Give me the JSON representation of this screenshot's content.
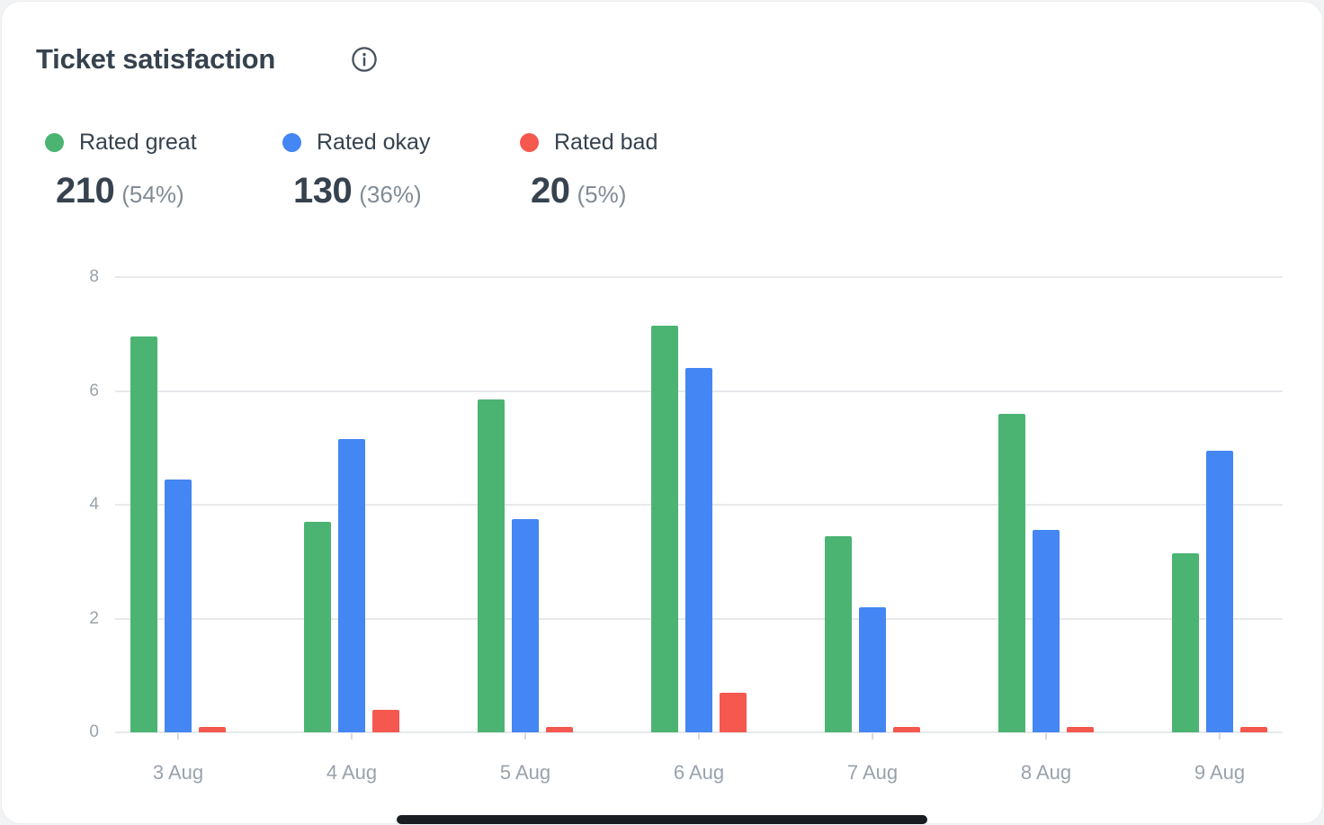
{
  "page": {
    "background": "#F2F3F5",
    "card_background": "#FFFFFF"
  },
  "header": {
    "title": "Ticket satisfaction"
  },
  "legend": {
    "items": [
      {
        "label": "Rated great",
        "value": "210",
        "percent": "(54%)",
        "color": "#4CB473"
      },
      {
        "label": "Rated okay",
        "value": "130",
        "percent": "(36%)",
        "color": "#4486F4"
      },
      {
        "label": "Rated bad",
        "value": "20",
        "percent": "(5%)",
        "color": "#F4584E"
      }
    ]
  },
  "chart_data": {
    "type": "bar",
    "title": "Ticket satisfaction",
    "categories": [
      "3 Aug",
      "4 Aug",
      "5 Aug",
      "6 Aug",
      "7 Aug",
      "8 Aug",
      "9 Aug"
    ],
    "series": [
      {
        "name": "Rated great",
        "color": "#4CB473",
        "values": [
          6.95,
          3.7,
          5.85,
          7.15,
          3.45,
          5.6,
          3.15
        ]
      },
      {
        "name": "Rated okay",
        "color": "#4486F4",
        "values": [
          4.45,
          5.15,
          3.75,
          6.4,
          2.2,
          3.55,
          4.95
        ]
      },
      {
        "name": "Rated bad",
        "color": "#F4584E",
        "values": [
          0.1,
          0.4,
          0.1,
          0.7,
          0.1,
          0.1,
          0.1
        ]
      }
    ],
    "xlabel": "",
    "ylabel": "",
    "ylim": [
      0,
      8
    ],
    "yticks": [
      0,
      2,
      4,
      6,
      8
    ],
    "grid": true,
    "legend_position": "top-left"
  },
  "axis": {
    "text_color": "#99A2AC",
    "grid_color": "#E7E9EB",
    "tick_color": "#D7DADD"
  }
}
